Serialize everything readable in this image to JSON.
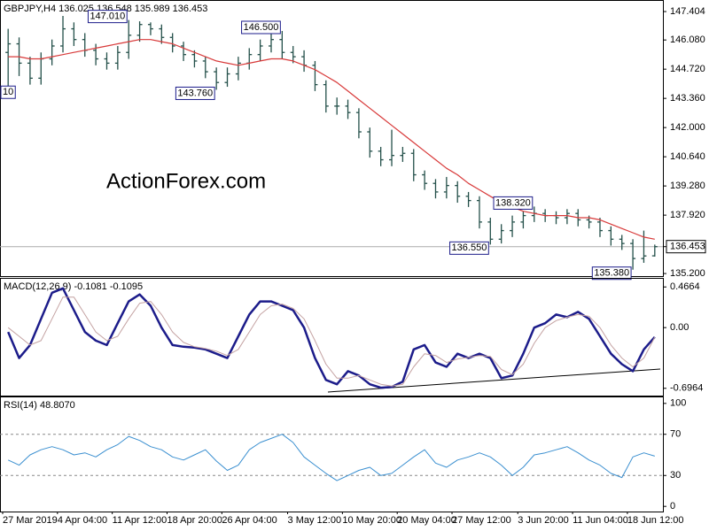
{
  "chart_data": [
    {
      "type": "ohlc",
      "title": "GBPJPY,H4  136.025 136.548 135.989 136.453",
      "watermark": "ActionForex.com",
      "color": "#24504a",
      "open": [
        145.5,
        145.9,
        145.0,
        144.3,
        145.2,
        145.8,
        146.6,
        146.1,
        145.6,
        145.2,
        145.0,
        145.5,
        146.3,
        146.8,
        146.6,
        146.2,
        145.8,
        145.4,
        145.1,
        144.6,
        144.1,
        144.5,
        145.0,
        145.4,
        145.8,
        146.1,
        145.5,
        145.3,
        144.9,
        144.0,
        143.0,
        143.0,
        142.7,
        141.8,
        140.9,
        140.5,
        140.7,
        140.8,
        139.8,
        139.4,
        139.0,
        139.3,
        138.8,
        138.6,
        137.6,
        136.8,
        137.2,
        137.6,
        137.9,
        138.0,
        137.9,
        137.8,
        138.0,
        137.7,
        137.6,
        137.2,
        136.8,
        136.6,
        135.9,
        136.025
      ],
      "high": [
        146.6,
        146.2,
        145.3,
        145.5,
        146.1,
        147.2,
        146.9,
        146.4,
        145.9,
        145.5,
        145.8,
        147.01,
        146.95,
        146.9,
        146.8,
        146.4,
        146.0,
        145.6,
        145.3,
        144.8,
        144.8,
        145.3,
        145.7,
        146.1,
        146.4,
        146.5,
        145.8,
        145.6,
        145.1,
        144.2,
        143.4,
        143.3,
        142.9,
        142.0,
        141.1,
        141.9,
        141.1,
        141.0,
        140.0,
        139.6,
        139.7,
        139.5,
        139.0,
        138.8,
        137.8,
        137.5,
        137.9,
        138.1,
        138.32,
        138.2,
        138.1,
        138.2,
        138.2,
        137.9,
        137.8,
        137.4,
        137.0,
        136.8,
        137.2,
        136.548
      ],
      "low": [
        143.81,
        144.4,
        144.0,
        144.0,
        144.9,
        145.5,
        145.8,
        145.3,
        144.9,
        144.7,
        144.7,
        145.2,
        146.0,
        146.3,
        145.9,
        145.5,
        145.1,
        144.8,
        144.3,
        143.76,
        143.9,
        144.2,
        144.7,
        145.1,
        145.5,
        145.2,
        145.0,
        144.6,
        143.7,
        142.7,
        142.6,
        142.4,
        141.5,
        140.6,
        140.2,
        140.2,
        140.4,
        139.5,
        139.1,
        138.7,
        138.7,
        138.5,
        138.3,
        137.3,
        136.55,
        136.6,
        136.9,
        137.3,
        137.6,
        137.6,
        137.5,
        137.5,
        137.4,
        137.3,
        136.9,
        136.5,
        136.3,
        135.38,
        135.7,
        135.989
      ],
      "close": [
        145.9,
        145.0,
        144.3,
        145.2,
        145.8,
        146.6,
        146.1,
        145.6,
        145.2,
        145.0,
        145.5,
        146.3,
        146.8,
        146.6,
        146.2,
        145.8,
        145.4,
        145.1,
        144.6,
        144.1,
        144.5,
        145.0,
        145.4,
        145.8,
        146.1,
        145.5,
        145.3,
        144.9,
        144.0,
        143.0,
        143.0,
        142.7,
        141.8,
        140.9,
        140.5,
        140.7,
        140.8,
        139.8,
        139.4,
        139.0,
        139.3,
        138.8,
        138.6,
        137.6,
        136.8,
        137.2,
        137.6,
        137.9,
        138.0,
        137.9,
        137.8,
        138.0,
        137.7,
        137.6,
        137.2,
        136.8,
        136.6,
        135.9,
        136.02,
        136.453
      ],
      "series": [
        {
          "color": "#d83a3a",
          "values": [
            145.3,
            145.3,
            145.2,
            145.2,
            145.3,
            145.4,
            145.5,
            145.6,
            145.7,
            145.8,
            145.9,
            146.0,
            146.1,
            146.1,
            146.0,
            145.9,
            145.7,
            145.5,
            145.3,
            145.1,
            145.0,
            144.9,
            145.0,
            145.1,
            145.2,
            145.2,
            145.1,
            144.9,
            144.7,
            144.4,
            144.1,
            143.7,
            143.3,
            142.9,
            142.5,
            142.1,
            141.7,
            141.3,
            140.9,
            140.5,
            140.1,
            139.8,
            139.4,
            139.1,
            138.8,
            138.5,
            138.3,
            138.1,
            138.0,
            137.9,
            137.9,
            137.9,
            137.8,
            137.8,
            137.7,
            137.5,
            137.3,
            137.1,
            136.9,
            136.8
          ]
        }
      ],
      "annotations": [
        {
          "label": "10",
          "value": 143.81
        },
        {
          "label": "147.010",
          "value": 147.01
        },
        {
          "label": "143.760",
          "value": 143.76
        },
        {
          "label": "146.500",
          "value": 146.5
        },
        {
          "label": "136.550",
          "value": 136.55
        },
        {
          "label": "138.320",
          "value": 138.32
        },
        {
          "label": "135.380",
          "value": 135.38
        }
      ],
      "ylim": [
        135.08,
        147.86
      ],
      "yticks": [
        147.404,
        {
          "value": 146.08,
          "label": "146.080"
        },
        {
          "value": 144.72,
          "label": "144.720"
        },
        {
          "value": 143.36,
          "label": "143.360"
        },
        {
          "value": 142,
          "label": "142.000"
        },
        {
          "value": 140.64,
          "label": "140.640"
        },
        {
          "value": 139.28,
          "label": "139.280"
        },
        {
          "value": 137.92,
          "label": "137.920"
        },
        136.453,
        {
          "value": 135.2,
          "label": "135.200"
        }
      ]
    },
    {
      "type": "line",
      "title": "MACD(12,26,9) -0.1081 -0.1095",
      "series": [
        {
          "color": "#1c1c8a",
          "width": 2.5,
          "values": [
            -0.05,
            -0.35,
            -0.2,
            0.1,
            0.4,
            0.45,
            0.2,
            -0.05,
            -0.15,
            -0.2,
            0.05,
            0.3,
            0.38,
            0.25,
            0.0,
            -0.2,
            -0.22,
            -0.23,
            -0.25,
            -0.3,
            -0.35,
            -0.1,
            0.15,
            0.3,
            0.3,
            0.25,
            0.2,
            0.0,
            -0.35,
            -0.6,
            -0.65,
            -0.5,
            -0.55,
            -0.65,
            -0.69,
            -0.68,
            -0.62,
            -0.25,
            -0.2,
            -0.4,
            -0.45,
            -0.3,
            -0.35,
            -0.3,
            -0.35,
            -0.58,
            -0.55,
            -0.3,
            0.0,
            0.05,
            0.15,
            0.12,
            0.18,
            0.1,
            -0.1,
            -0.3,
            -0.42,
            -0.5,
            -0.25,
            -0.1081
          ]
        },
        {
          "color": "#c4a2a2",
          "width": 1,
          "values": [
            0.0,
            -0.1,
            -0.2,
            -0.15,
            0.1,
            0.35,
            0.35,
            0.15,
            -0.05,
            -0.15,
            -0.1,
            0.1,
            0.28,
            0.3,
            0.15,
            -0.05,
            -0.17,
            -0.22,
            -0.24,
            -0.27,
            -0.32,
            -0.25,
            -0.05,
            0.15,
            0.25,
            0.27,
            0.22,
            0.1,
            -0.15,
            -0.42,
            -0.58,
            -0.58,
            -0.55,
            -0.6,
            -0.65,
            -0.67,
            -0.65,
            -0.45,
            -0.3,
            -0.32,
            -0.4,
            -0.36,
            -0.34,
            -0.32,
            -0.33,
            -0.48,
            -0.54,
            -0.42,
            -0.18,
            0.0,
            0.08,
            0.12,
            0.15,
            0.13,
            0.0,
            -0.2,
            -0.35,
            -0.45,
            -0.35,
            -0.1095
          ]
        }
      ],
      "ylim": [
        -0.78,
        0.55
      ],
      "yticks": [
        0.4664,
        {
          "value": 0,
          "label": "0.00"
        },
        -0.6964
      ],
      "level_lines": false
    },
    {
      "type": "line",
      "title": "RSI(14) 48.8070",
      "categories": [
        "27 Mar 2019",
        null,
        null,
        null,
        null,
        "4 Apr 04:00",
        null,
        null,
        null,
        null,
        "11 Apr 12:00",
        null,
        null,
        null,
        null,
        "18 Apr 20:00",
        null,
        null,
        null,
        null,
        "26 Apr 04:00",
        null,
        null,
        null,
        null,
        null,
        "3 May 12:00",
        null,
        null,
        null,
        null,
        "10 May 20:00",
        null,
        null,
        null,
        null,
        "20 May 04:00",
        null,
        null,
        null,
        null,
        "27 May 12:00",
        null,
        null,
        null,
        null,
        null,
        "3 Jun 20:00",
        null,
        null,
        null,
        null,
        "11 Jun 04:00",
        null,
        null,
        null,
        null,
        "18 Jun 12:00",
        null,
        null
      ],
      "series": [
        {
          "color": "#3a8fd0",
          "width": 1,
          "values": [
            45,
            40,
            50,
            55,
            58,
            55,
            50,
            52,
            48,
            55,
            60,
            68,
            64,
            58,
            55,
            48,
            45,
            50,
            55,
            44,
            35,
            40,
            55,
            62,
            66,
            70,
            62,
            48,
            40,
            32,
            25,
            30,
            35,
            38,
            30,
            32,
            40,
            48,
            55,
            42,
            38,
            45,
            48,
            52,
            48,
            40,
            30,
            38,
            50,
            52,
            55,
            58,
            52,
            45,
            40,
            32,
            28,
            48,
            52,
            48.807
          ]
        }
      ],
      "ylim": [
        -5,
        105
      ],
      "yticks": [
        100,
        70,
        30,
        0
      ],
      "level_lines": true
    }
  ]
}
